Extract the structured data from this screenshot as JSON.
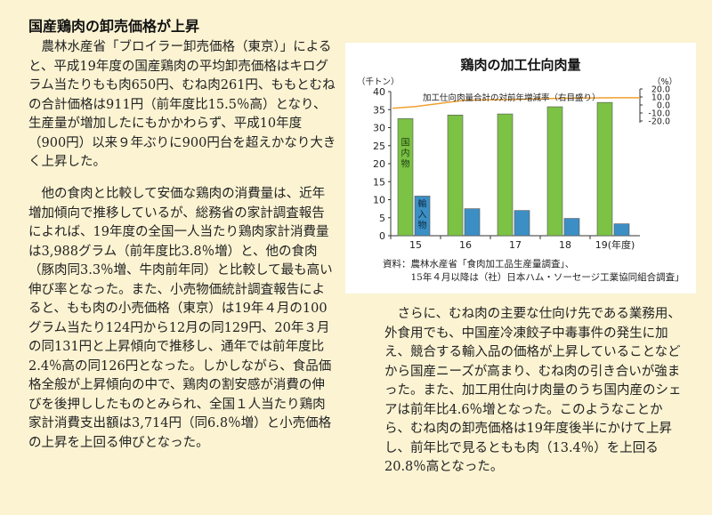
{
  "article": {
    "heading": "国産鶏肉の卸売価格が上昇",
    "paragraphs": [
      "　農林水産省「ブロイラー卸売価格（東京）」によると、平成19年度の国産鶏肉の平均卸売価格はキログラム当たりもも肉650円、むね肉261円、ももとむねの合計価格は911円（前年度比15.5％高）となり、生産量が増加したにもかかわらず、平成10年度（900円）以来９年ぶりに900円台を超えかなり大きく上昇した。",
      "　他の食肉と比較して安価な鶏肉の消費量は、近年増加傾向で推移しているが、総務省の家計調査報告によれば、19年度の全国一人当たり鶏肉家計消費量は3,988グラム（前年度比3.8％増）と、他の食肉（豚肉同3.3％増、牛肉前年同）と比較して最も高い伸び率となった。また、小売物価統計調査報告によると、もも肉の小売価格（東京）は19年４月の100グラム当たり124円から12月の同129円、20年３月の同131円と上昇傾向で推移し、通年では前年度比2.4％高の同126円となった。しかしながら、食品価格全般が上昇傾向の中で、鶏肉の割安感が消費の伸びを後押ししたものとみられ、全国１人当たり鶏肉家計消費支出額は3,714円（同6.8％増）と小売価格の上昇を上回る伸びとなった。",
      "　さらに、むね肉の主要な仕向け先である業務用、外食用でも、中国産冷凍餃子中毒事件の発生に加え、競合する輸入品の価格が上昇していることなどから国産ニーズが高まり、むね肉の引き合いが強まった。また、加工用仕向け肉量のうち国内産のシェアは前年比4.6％増となった。このようなことから、むね肉の卸売価格は19年度後半にかけて上昇し、前年比で見るともも肉（13.4％）を上回る20.8％高となった。"
    ]
  },
  "figure": {
    "source_lines": [
      "資料：農林水産省「食肉加工品生産量調査」、",
      "　　　15年４月以降は（社）日本ハム・ソーセージ工業協同組合調査」"
    ]
  },
  "chart_data": {
    "type": "bar",
    "title": "鶏肉の加工仕向肉量",
    "categories": [
      "15",
      "16",
      "17",
      "18",
      "19(年度)"
    ],
    "series": [
      {
        "name": "国内物",
        "values": [
          32.5,
          33.5,
          33.8,
          35.8,
          37.0
        ],
        "color": "#7cc245"
      },
      {
        "name": "輸入物",
        "values": [
          11.0,
          7.5,
          7.0,
          4.8,
          3.3
        ],
        "color": "#3c8fc4"
      },
      {
        "name": "加工仕向肉量合計の対前年増減率（右目盛り）",
        "type": "line",
        "values": [
          -2.0,
          6.0,
          7.0,
          8.5,
          9.0
        ],
        "color": "#f0a030"
      }
    ],
    "ylabel_left": "（千トン）",
    "ylim_left": [
      0,
      40
    ],
    "yticks_left": [
      0,
      5,
      10,
      15,
      20,
      25,
      30,
      35,
      40
    ],
    "ylabel_right": "（%）",
    "ylim_right": [
      -20,
      20
    ],
    "yticks_right": [
      "20.0",
      "10.0",
      "0.0",
      "-10.0",
      "-20.0"
    ],
    "inline_labels": [
      "国内物",
      "輸入物"
    ]
  }
}
